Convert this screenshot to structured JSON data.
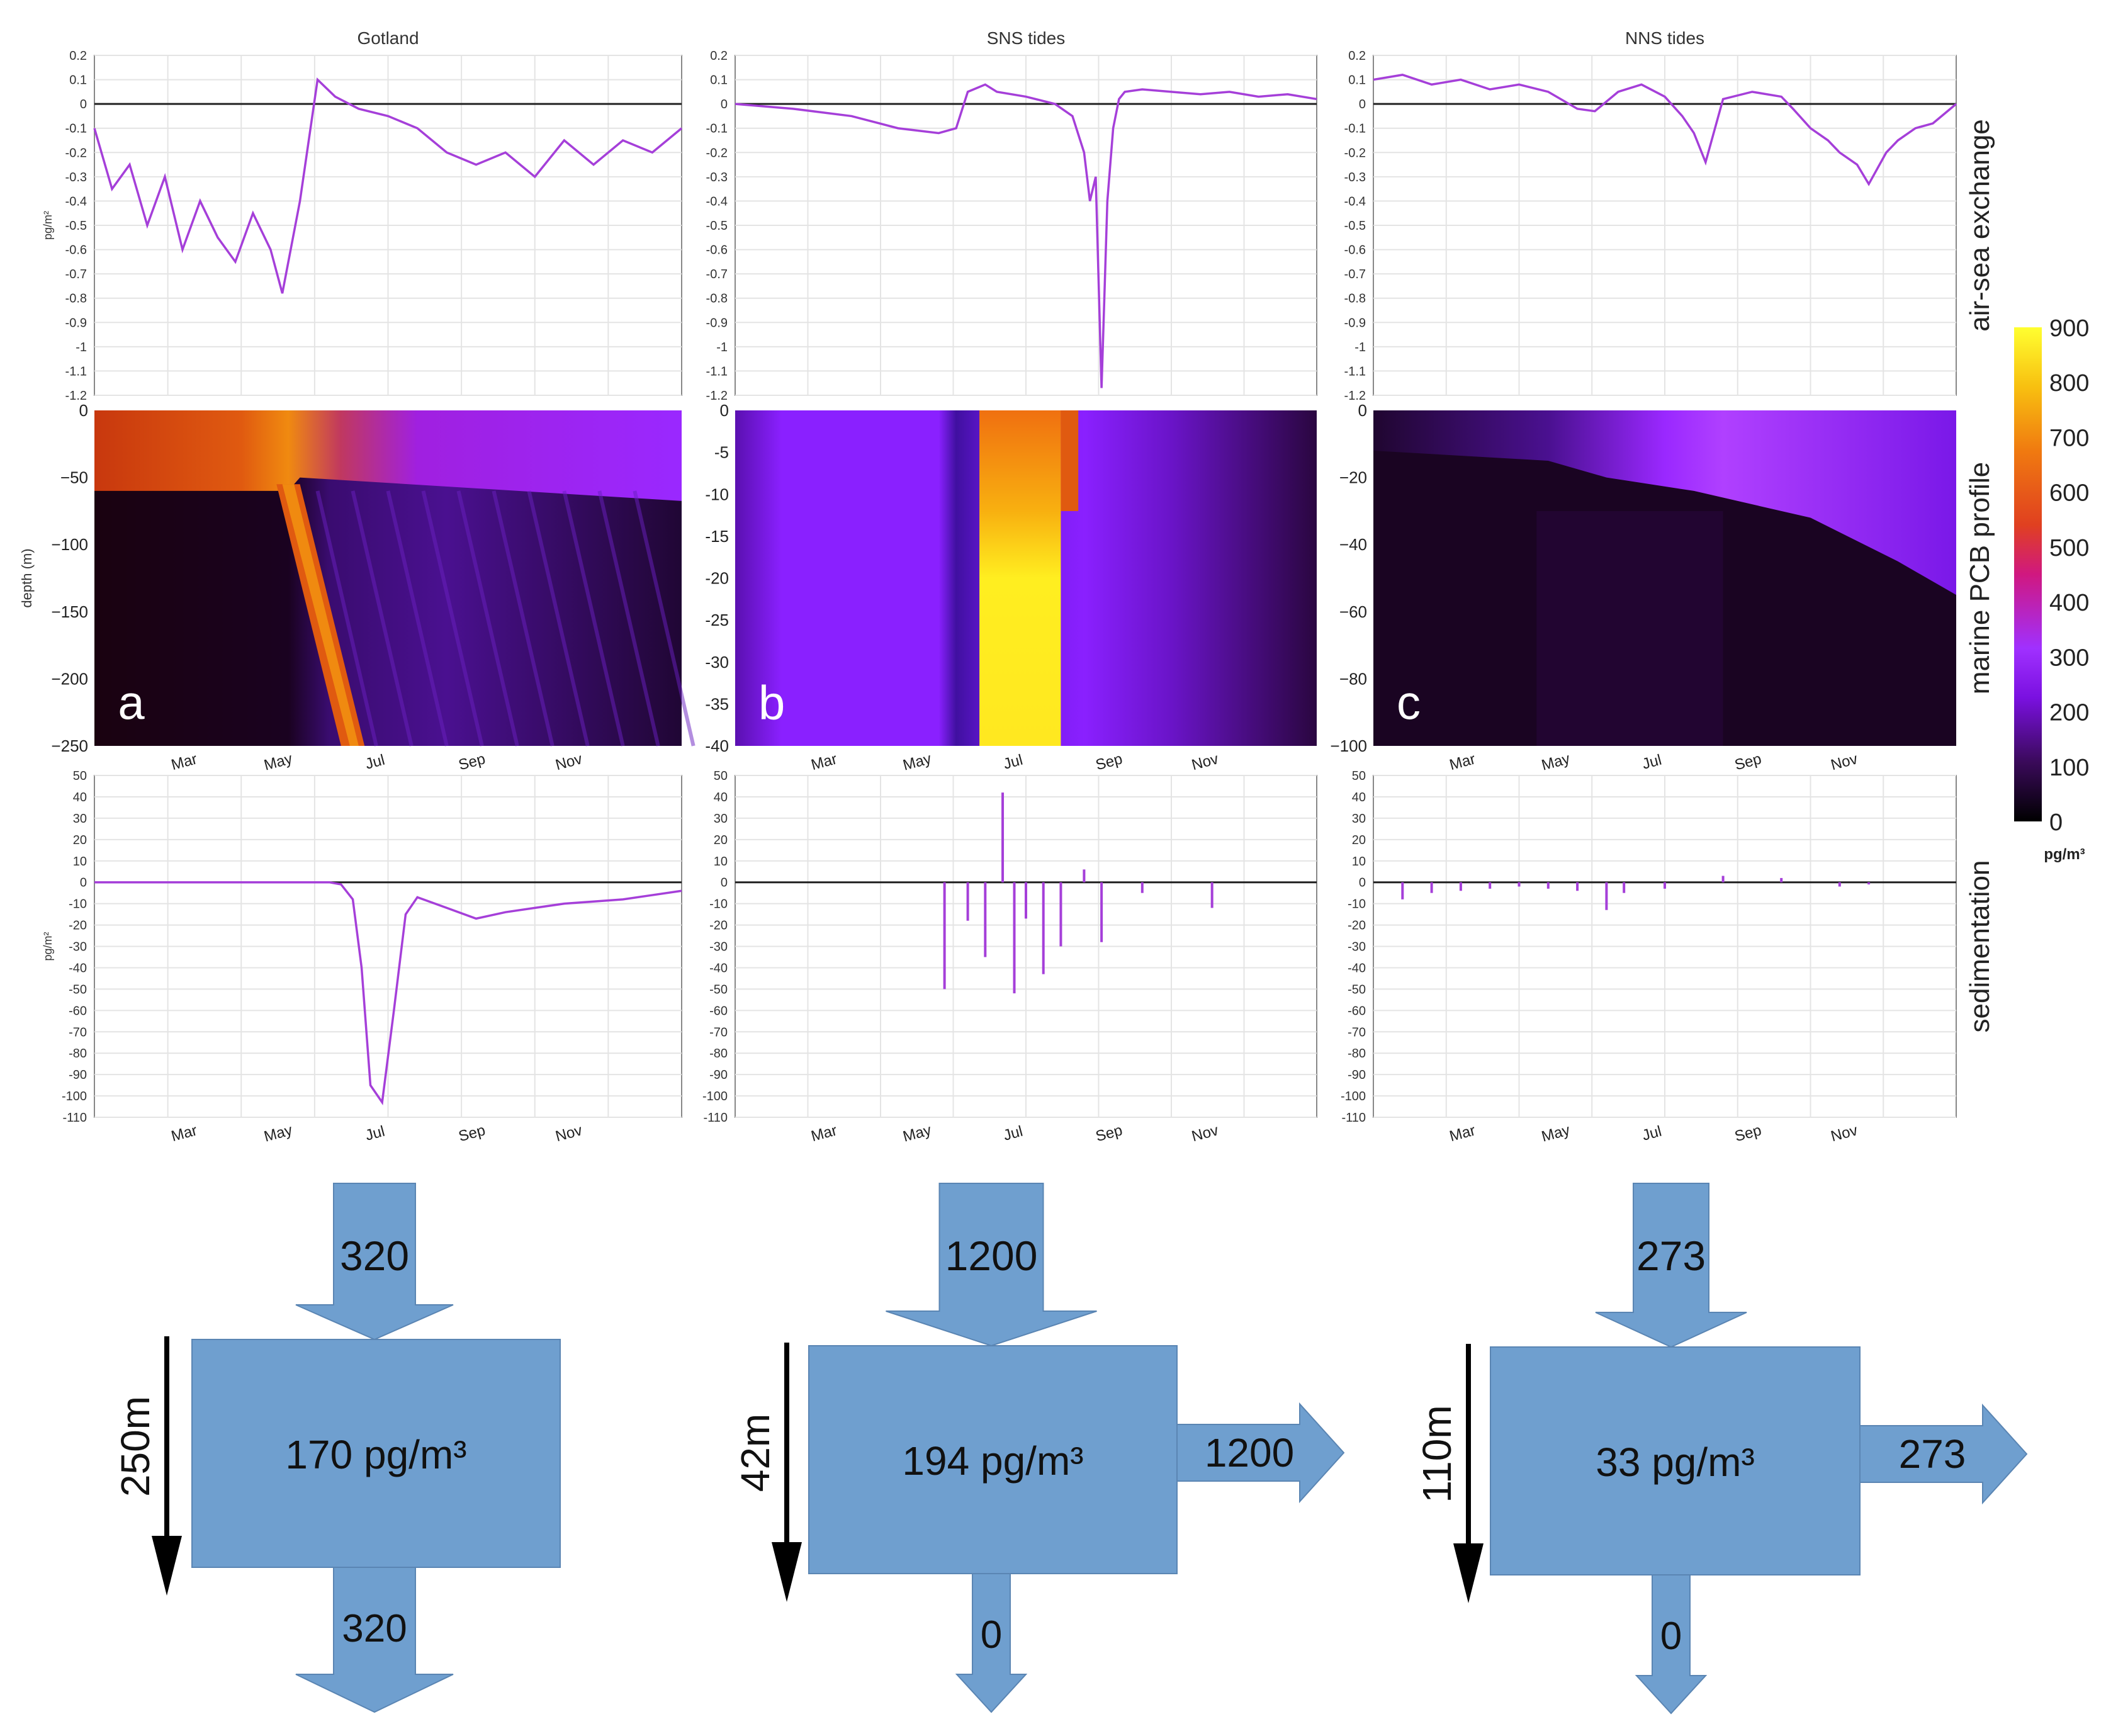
{
  "chart_data": {
    "type": "line",
    "row_labels": [
      "air-sea exchange",
      "marine PCB profile",
      "sedimentation"
    ],
    "month_ticks": [
      "Mar",
      "May",
      "Jul",
      "Sep",
      "Nov"
    ],
    "air_sea_exchange": {
      "ylabel": "pg/m²",
      "ylim": [
        -1.2,
        0.2
      ],
      "yticks": [
        "0.2",
        "0.1",
        "0",
        "-0.1",
        "-0.2",
        "-0.3",
        "-0.4",
        "-0.5",
        "-0.6",
        "-0.7",
        "-0.8",
        "-0.9",
        "-1",
        "-1.1",
        "-1.2"
      ]
    },
    "sedimentation": {
      "ylabel": "pg/m²",
      "ylim": [
        -110,
        50
      ],
      "yticks": [
        "50",
        "40",
        "30",
        "20",
        "10",
        "0",
        "-10",
        "-20",
        "-30",
        "-40",
        "-50",
        "-60",
        "-70",
        "-80",
        "-90",
        "-100",
        "-110"
      ]
    },
    "profile": {
      "ylabel": "depth (m)",
      "colorbar": {
        "label": "pg/m³",
        "ticks": [
          "900",
          "800",
          "700",
          "600",
          "500",
          "400",
          "300",
          "200",
          "100",
          "0"
        ],
        "range": [
          0,
          900
        ]
      }
    },
    "panels": [
      {
        "title": "Gotland",
        "letter": "a",
        "depth_ticks": [
          "0",
          "−50",
          "−100",
          "−150",
          "−200",
          "−250"
        ],
        "air_sea": {
          "x": [
            0,
            0.03,
            0.06,
            0.09,
            0.12,
            0.15,
            0.18,
            0.21,
            0.24,
            0.27,
            0.3,
            0.32,
            0.35,
            0.38,
            0.41,
            0.45,
            0.5,
            0.55,
            0.6,
            0.65,
            0.7,
            0.75,
            0.8,
            0.85,
            0.9,
            0.95,
            1
          ],
          "y": [
            -0.1,
            -0.35,
            -0.25,
            -0.5,
            -0.3,
            -0.6,
            -0.4,
            -0.55,
            -0.65,
            -0.45,
            -0.6,
            -0.78,
            -0.4,
            0.1,
            0.03,
            -0.02,
            -0.05,
            -0.1,
            -0.2,
            -0.25,
            -0.2,
            -0.3,
            -0.15,
            -0.25,
            -0.15,
            -0.2,
            -0.1
          ]
        },
        "sedimentation": {
          "x": [
            0,
            0.35,
            0.4,
            0.42,
            0.44,
            0.455,
            0.47,
            0.49,
            0.51,
            0.53,
            0.55,
            0.6,
            0.65,
            0.7,
            0.75,
            0.8,
            0.85,
            0.9,
            0.95,
            1
          ],
          "y": [
            0,
            0,
            0,
            -1,
            -8,
            -40,
            -95,
            -103,
            -60,
            -15,
            -7,
            -12,
            -17,
            -14,
            -12,
            -10,
            -9,
            -8,
            -6,
            -4
          ]
        },
        "budget": {
          "depth_label": "250m",
          "concentration": "170 pg/m³",
          "inflow_top": "320",
          "outflow_bottom": "320",
          "outflow_right": ""
        }
      },
      {
        "title": "SNS tides",
        "letter": "b",
        "depth_ticks": [
          "0",
          "-5",
          "-10",
          "-15",
          "-20",
          "-25",
          "-30",
          "-35",
          "-40"
        ],
        "air_sea": {
          "x": [
            0,
            0.1,
            0.2,
            0.28,
            0.35,
            0.38,
            0.4,
            0.43,
            0.45,
            0.5,
            0.55,
            0.58,
            0.6,
            0.61,
            0.62,
            0.63,
            0.64,
            0.65,
            0.66,
            0.67,
            0.7,
            0.75,
            0.8,
            0.85,
            0.9,
            0.95,
            1
          ],
          "y": [
            0,
            -0.02,
            -0.05,
            -0.1,
            -0.12,
            -0.1,
            0.05,
            0.08,
            0.05,
            0.03,
            0.0,
            -0.05,
            -0.2,
            -0.4,
            -0.3,
            -1.17,
            -0.4,
            -0.1,
            0.02,
            0.05,
            0.06,
            0.05,
            0.04,
            0.05,
            0.03,
            0.04,
            0.02
          ]
        },
        "sedimentation": {
          "spikes_x": [
            0.36,
            0.4,
            0.43,
            0.46,
            0.48,
            0.5,
            0.53,
            0.56,
            0.6,
            0.63,
            0.7,
            0.82
          ],
          "spikes_y": [
            -50,
            -18,
            -35,
            42,
            -52,
            -17,
            -43,
            -30,
            6,
            -28,
            -5,
            -12
          ]
        },
        "budget": {
          "depth_label": "42m",
          "concentration": "194 pg/m³",
          "inflow_top": "1200",
          "outflow_bottom": "0",
          "outflow_right": "1200"
        }
      },
      {
        "title": "NNS tides",
        "letter": "c",
        "depth_ticks": [
          "0",
          "−20",
          "−40",
          "−60",
          "−80",
          "−100"
        ],
        "air_sea": {
          "x": [
            0,
            0.05,
            0.1,
            0.15,
            0.2,
            0.25,
            0.3,
            0.35,
            0.38,
            0.42,
            0.46,
            0.5,
            0.53,
            0.55,
            0.57,
            0.6,
            0.65,
            0.7,
            0.72,
            0.75,
            0.78,
            0.8,
            0.83,
            0.85,
            0.88,
            0.9,
            0.93,
            0.96,
            1
          ],
          "y": [
            0.1,
            0.12,
            0.08,
            0.1,
            0.06,
            0.08,
            0.05,
            -0.02,
            -0.03,
            0.05,
            0.08,
            0.03,
            -0.05,
            -0.12,
            -0.24,
            0.02,
            0.05,
            0.03,
            -0.02,
            -0.1,
            -0.15,
            -0.2,
            -0.25,
            -0.33,
            -0.2,
            -0.15,
            -0.1,
            -0.08,
            0.0
          ]
        },
        "sedimentation": {
          "spikes_x": [
            0.05,
            0.1,
            0.15,
            0.2,
            0.25,
            0.3,
            0.35,
            0.4,
            0.43,
            0.5,
            0.6,
            0.7,
            0.8,
            0.85
          ],
          "spikes_y": [
            -8,
            -5,
            -4,
            -3,
            -2,
            -3,
            -4,
            -13,
            -5,
            -3,
            3,
            2,
            -2,
            -1
          ]
        },
        "budget": {
          "depth_label": "110m",
          "concentration": "33 pg/m³",
          "inflow_top": "273",
          "outflow_bottom": "0",
          "outflow_right": "273"
        }
      }
    ]
  },
  "colors": {
    "line": "#a53fd9",
    "zero_line": "#222222",
    "grid": "#e4e4e4",
    "box_fill": "#6f9fcf",
    "box_stroke": "#5a85b3"
  }
}
